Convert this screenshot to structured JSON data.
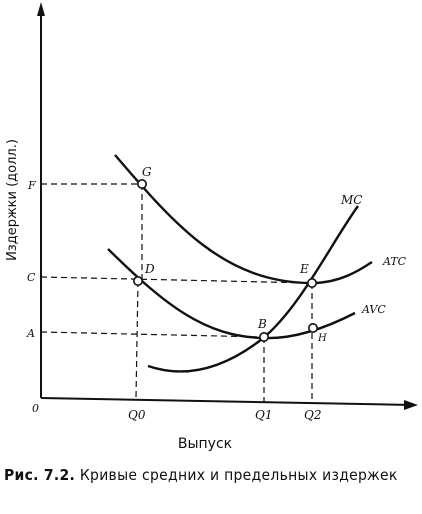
{
  "figure": {
    "ylabel": "Издержки (долл.)",
    "xlabel": "Выпуск",
    "origin": "0",
    "y_ticks": [
      "F",
      "C",
      "A"
    ],
    "x_ticks": [
      "Q0",
      "Q1",
      "Q2"
    ],
    "curves": [
      "MC",
      "ATC",
      "AVC"
    ],
    "points": [
      "G",
      "D",
      "E",
      "B",
      "H"
    ]
  },
  "caption": {
    "figure_no": "Рис. 7.2.",
    "text": "Кривые средних и предельных издержек"
  },
  "colors": {
    "ink": "#111111",
    "background": "#ffffff"
  }
}
